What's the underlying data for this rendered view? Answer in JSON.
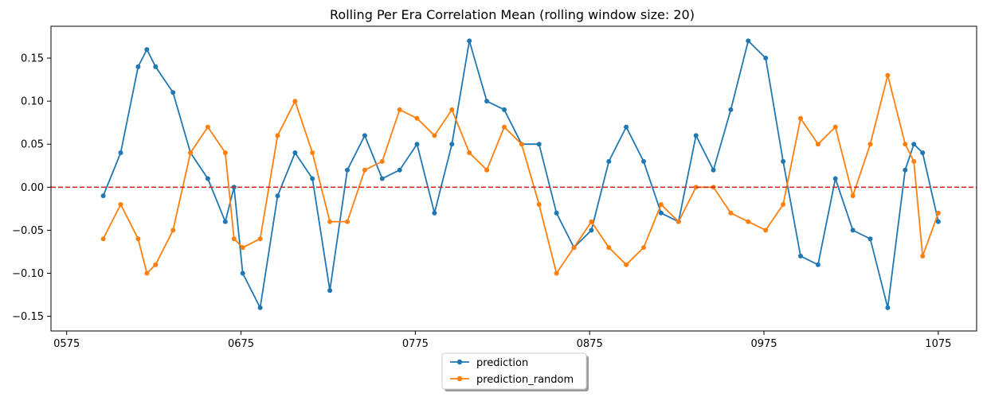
{
  "chart_data": {
    "type": "line",
    "title": "Rolling Per Era Correlation Mean (rolling window size: 20)",
    "xlabel": "",
    "ylabel": "",
    "xlim": [
      566,
      1097
    ],
    "ylim": [
      -0.167,
      0.187
    ],
    "x_ticks": [
      575,
      675,
      775,
      875,
      975,
      1075
    ],
    "x_tick_labels": [
      "0575",
      "0675",
      "0775",
      "0875",
      "0975",
      "1075"
    ],
    "y_ticks": [
      0.15,
      0.1,
      0.05,
      0.0,
      -0.05,
      -0.1,
      -0.15
    ],
    "y_tick_labels": [
      "0.15",
      "0.10",
      "0.05",
      "0.00",
      "−0.05",
      "−0.10",
      "−0.15"
    ],
    "grid": false,
    "reference_line": {
      "y": 0.0,
      "color": "#d62728",
      "style": "dashed"
    },
    "legend_position": "bottom-center, outside plot",
    "x": [
      596,
      606,
      616,
      621,
      626,
      636,
      646,
      656,
      666,
      671,
      676,
      686,
      696,
      706,
      716,
      726,
      736,
      746,
      756,
      766,
      776,
      786,
      796,
      806,
      816,
      826,
      836,
      846,
      856,
      866,
      876,
      886,
      896,
      906,
      916,
      926,
      936,
      946,
      956,
      966,
      976,
      986,
      996,
      1006,
      1016,
      1026,
      1036,
      1046,
      1056,
      1061,
      1066,
      1075
    ],
    "series": [
      {
        "name": "prediction",
        "color": "#1f77b4",
        "marker": "circle",
        "values": [
          -0.01,
          0.04,
          0.14,
          0.16,
          0.14,
          0.11,
          0.04,
          0.01,
          -0.04,
          0.0,
          -0.1,
          -0.14,
          -0.01,
          0.04,
          0.01,
          -0.12,
          0.02,
          0.06,
          0.01,
          0.02,
          0.05,
          -0.03,
          0.05,
          0.17,
          0.1,
          0.09,
          0.05,
          0.05,
          -0.03,
          -0.07,
          -0.05,
          0.03,
          0.07,
          0.03,
          -0.03,
          -0.04,
          0.06,
          0.02,
          0.09,
          0.17,
          0.15,
          0.03,
          -0.08,
          -0.09,
          0.01,
          -0.05,
          -0.06,
          -0.14,
          0.02,
          0.05,
          0.04,
          -0.04
        ]
      },
      {
        "name": "prediction_random",
        "color": "#ff7f0e",
        "marker": "circle",
        "values": [
          -0.06,
          -0.02,
          -0.06,
          -0.1,
          -0.09,
          -0.05,
          0.04,
          0.07,
          0.04,
          -0.06,
          -0.07,
          -0.06,
          0.06,
          0.1,
          0.04,
          -0.04,
          -0.04,
          0.02,
          0.03,
          0.09,
          0.08,
          0.06,
          0.09,
          0.04,
          0.02,
          0.07,
          0.05,
          -0.02,
          -0.1,
          -0.07,
          -0.04,
          -0.07,
          -0.09,
          -0.07,
          -0.02,
          -0.04,
          0.0,
          0.0,
          -0.03,
          -0.04,
          -0.05,
          -0.02,
          0.08,
          0.05,
          0.07,
          -0.01,
          0.05,
          0.13,
          0.05,
          0.03,
          -0.08,
          -0.03
        ]
      }
    ]
  }
}
